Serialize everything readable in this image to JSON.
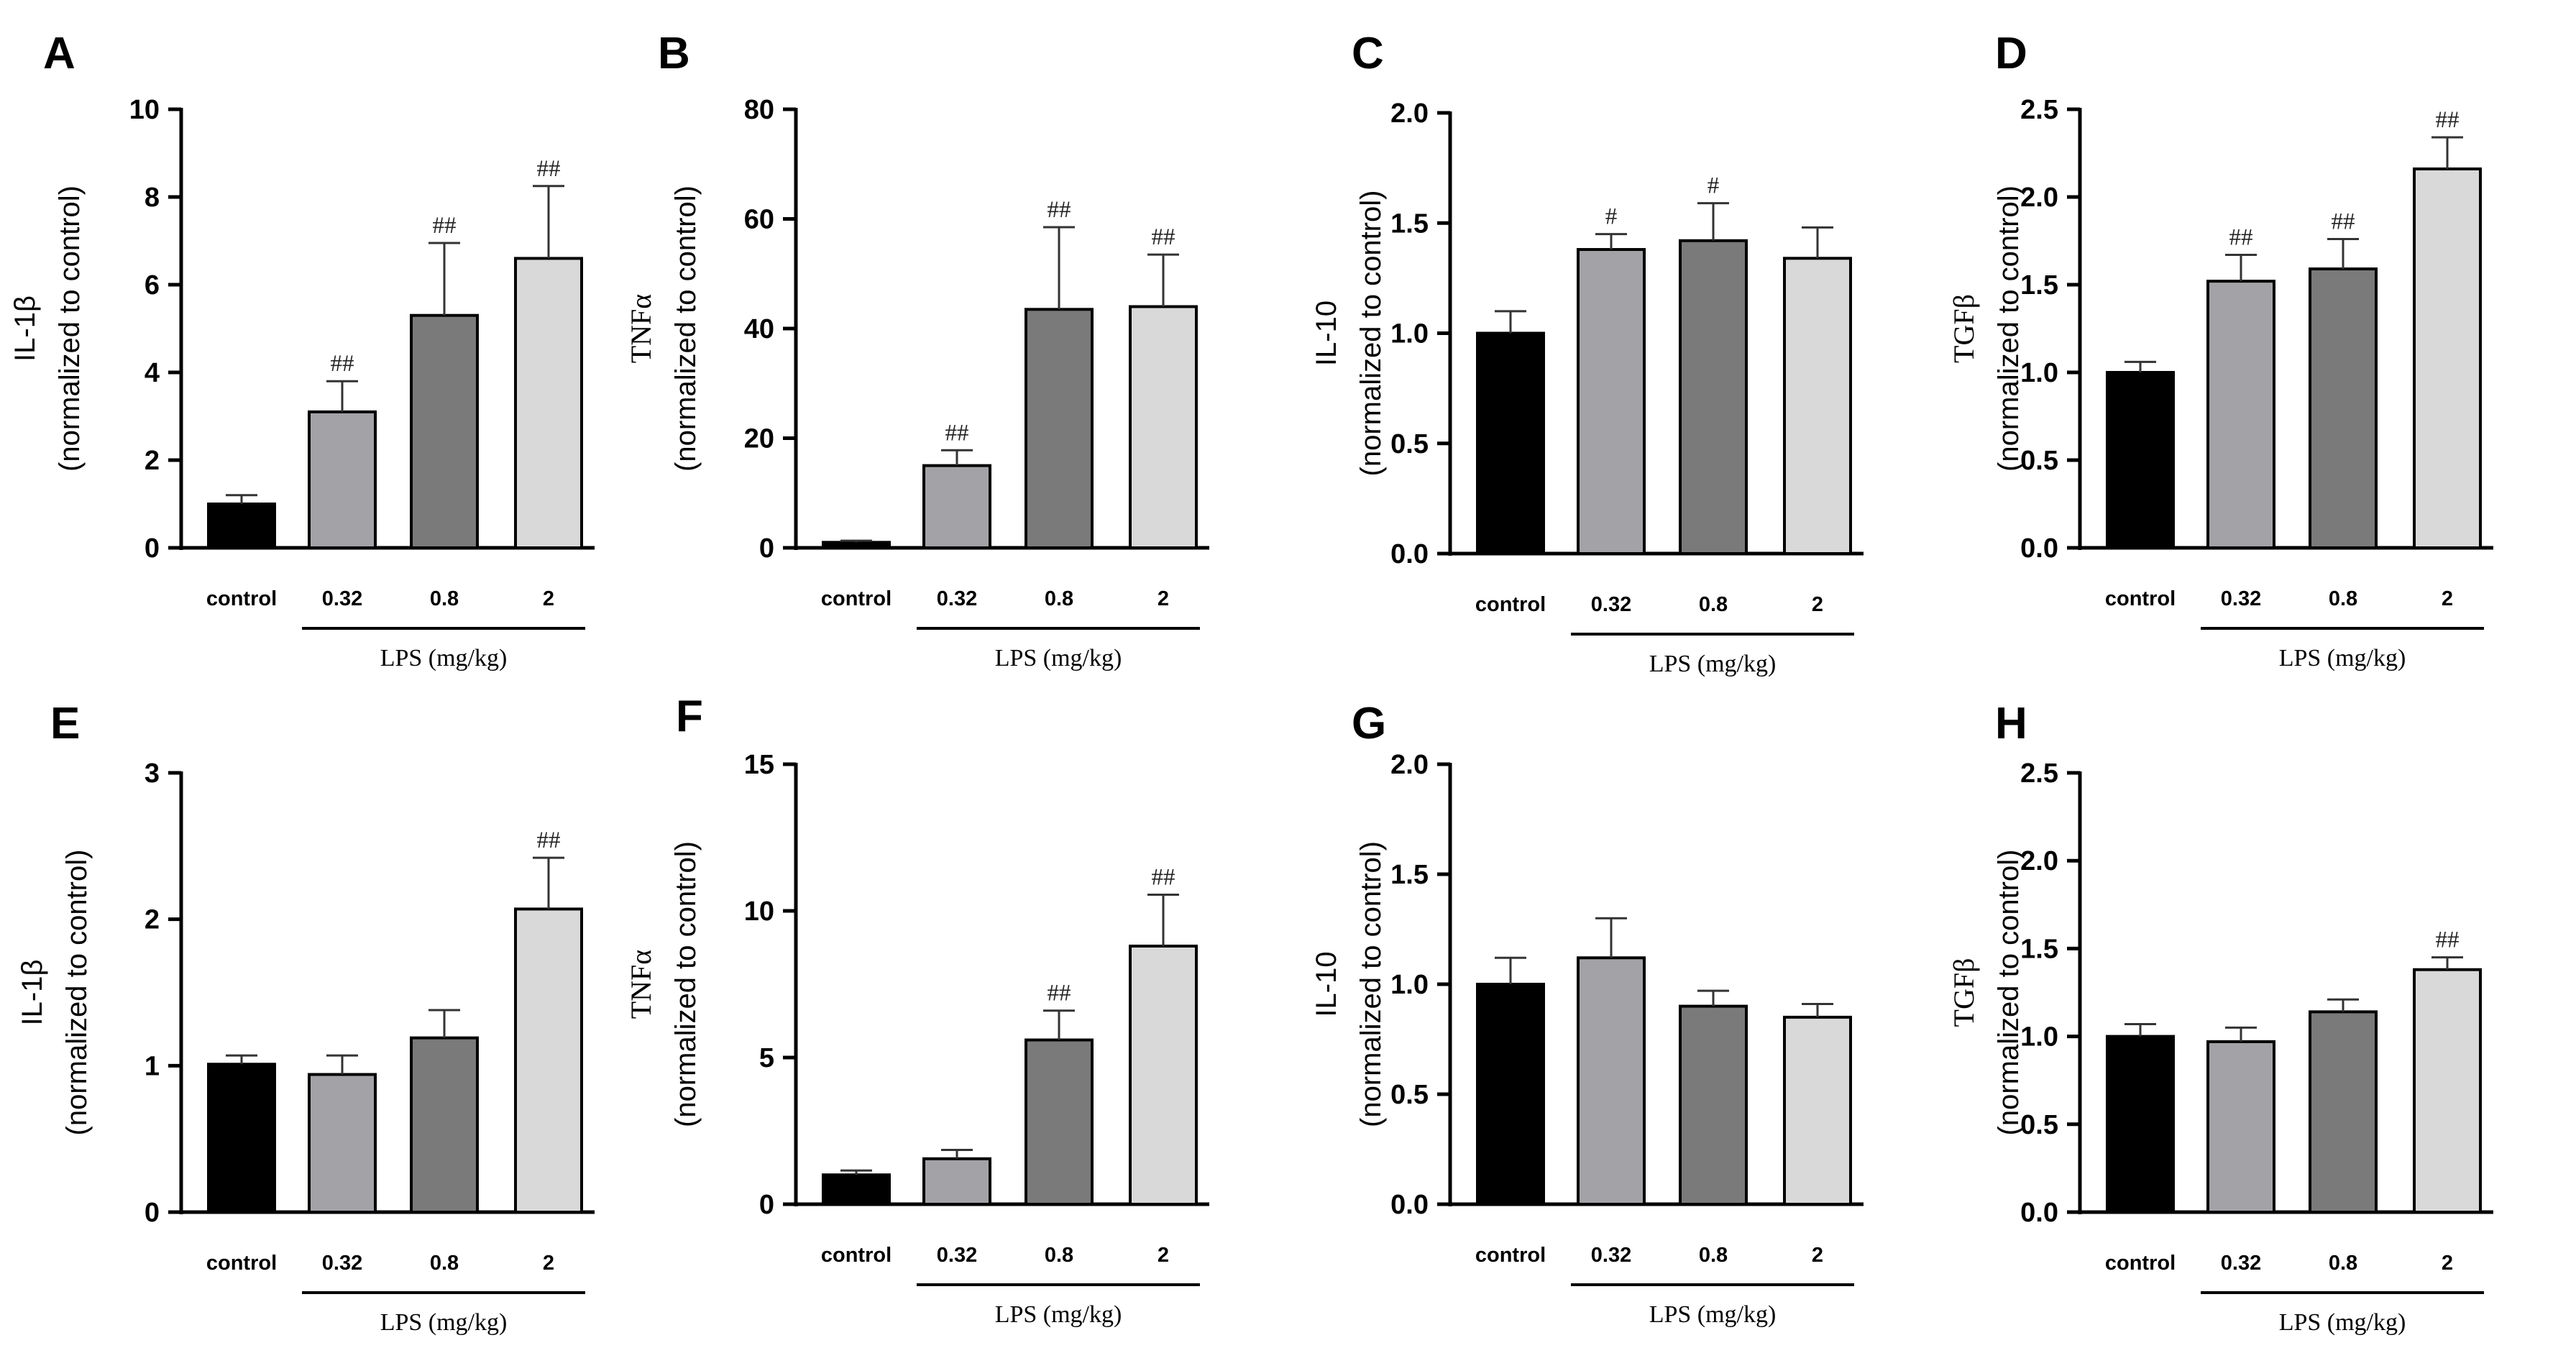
{
  "chart_data": [
    {
      "panel": "A",
      "type": "bar",
      "ylabel": "IL-1β",
      "ylabel_sub": "(normalized to control)",
      "ylim": [
        0,
        10
      ],
      "yticks": [
        0,
        2,
        4,
        6,
        8,
        10
      ],
      "ytick_labels": [
        "0",
        "2",
        "4",
        "6",
        "8",
        "10"
      ],
      "categories": [
        "control",
        "0.32",
        "0.8",
        "2"
      ],
      "group_label": "LPS (mg/kg)",
      "values": [
        1.0,
        3.1,
        5.3,
        6.6
      ],
      "errors": [
        0.2,
        0.7,
        1.65,
        1.65
      ],
      "significance": [
        "",
        "##",
        "##",
        "##"
      ]
    },
    {
      "panel": "B",
      "type": "bar",
      "ylabel": "TNFα",
      "ylabel_sub": "(normalized to control)",
      "ylim": [
        0,
        80
      ],
      "yticks": [
        0,
        20,
        40,
        60,
        80
      ],
      "ytick_labels": [
        "0",
        "20",
        "40",
        "60",
        "80"
      ],
      "categories": [
        "control",
        "0.32",
        "0.8",
        "2"
      ],
      "group_label": "LPS (mg/kg)",
      "values": [
        1.0,
        15.0,
        43.5,
        44.0
      ],
      "errors": [
        0.3,
        2.8,
        15.0,
        9.5
      ],
      "significance": [
        "",
        "##",
        "##",
        "##"
      ]
    },
    {
      "panel": "C",
      "type": "bar",
      "ylabel": "IL-10",
      "ylabel_sub": "(normalized to control)",
      "ylim": [
        0,
        2.0
      ],
      "yticks": [
        0,
        0.5,
        1.0,
        1.5,
        2.0
      ],
      "ytick_labels": [
        "0.0",
        "0.5",
        "1.0",
        "1.5",
        "2.0"
      ],
      "categories": [
        "control",
        "0.32",
        "0.8",
        "2"
      ],
      "group_label": "LPS (mg/kg)",
      "values": [
        1.0,
        1.38,
        1.42,
        1.34
      ],
      "errors": [
        0.1,
        0.07,
        0.17,
        0.14
      ],
      "significance": [
        "",
        "#",
        "#",
        ""
      ]
    },
    {
      "panel": "D",
      "type": "bar",
      "ylabel": "TGFβ",
      "ylabel_sub": "(normalized to control)",
      "ylim": [
        0,
        2.5
      ],
      "yticks": [
        0,
        0.5,
        1.0,
        1.5,
        2.0,
        2.5
      ],
      "ytick_labels": [
        "0.0",
        "0.5",
        "1.0",
        "1.5",
        "2.0",
        "2.5"
      ],
      "categories": [
        "control",
        "0.32",
        "0.8",
        "2"
      ],
      "group_label": "LPS (mg/kg)",
      "values": [
        1.0,
        1.52,
        1.59,
        2.16
      ],
      "errors": [
        0.06,
        0.15,
        0.17,
        0.18
      ],
      "significance": [
        "",
        "##",
        "##",
        "##"
      ]
    },
    {
      "panel": "E",
      "type": "bar",
      "ylabel": "IL-1β",
      "ylabel_sub": "(normalized to control)",
      "ylim": [
        0,
        3
      ],
      "yticks": [
        0,
        1,
        2,
        3
      ],
      "ytick_labels": [
        "0",
        "1",
        "2",
        "3"
      ],
      "categories": [
        "control",
        "0.32",
        "0.8",
        "2"
      ],
      "group_label": "LPS (mg/kg)",
      "values": [
        1.01,
        0.94,
        1.19,
        2.07
      ],
      "errors": [
        0.06,
        0.13,
        0.19,
        0.35
      ],
      "significance": [
        "",
        "",
        "",
        "##"
      ]
    },
    {
      "panel": "F",
      "type": "bar",
      "ylabel": "TNFα",
      "ylabel_sub": "(normalized to control)",
      "ylim": [
        0,
        15
      ],
      "yticks": [
        0,
        5,
        10,
        15
      ],
      "ytick_labels": [
        "0",
        "5",
        "10",
        "15"
      ],
      "categories": [
        "control",
        "0.32",
        "0.8",
        "2"
      ],
      "group_label": "LPS (mg/kg)",
      "values": [
        1.0,
        1.55,
        5.6,
        8.8
      ],
      "errors": [
        0.15,
        0.3,
        1.0,
        1.75
      ],
      "significance": [
        "",
        "",
        "##",
        "##"
      ]
    },
    {
      "panel": "G",
      "type": "bar",
      "ylabel": "IL-10",
      "ylabel_sub": "(normalized to control)",
      "ylim": [
        0,
        2.0
      ],
      "yticks": [
        0,
        0.5,
        1.0,
        1.5,
        2.0
      ],
      "ytick_labels": [
        "0.0",
        "0.5",
        "1.0",
        "1.5",
        "2.0"
      ],
      "categories": [
        "control",
        "0.32",
        "0.8",
        "2"
      ],
      "group_label": "LPS (mg/kg)",
      "values": [
        1.0,
        1.12,
        0.9,
        0.85
      ],
      "errors": [
        0.12,
        0.18,
        0.07,
        0.06
      ],
      "significance": [
        "",
        "",
        "",
        ""
      ]
    },
    {
      "panel": "H",
      "type": "bar",
      "ylabel": "TGFβ",
      "ylabel_sub": "(normalized to control)",
      "ylim": [
        0,
        2.5
      ],
      "yticks": [
        0,
        0.5,
        1.0,
        1.5,
        2.0,
        2.5
      ],
      "ytick_labels": [
        "0.0",
        "0.5",
        "1.0",
        "1.5",
        "2.0",
        "2.5"
      ],
      "categories": [
        "control",
        "0.32",
        "0.8",
        "2"
      ],
      "group_label": "LPS (mg/kg)",
      "values": [
        1.0,
        0.97,
        1.14,
        1.38
      ],
      "errors": [
        0.07,
        0.08,
        0.07,
        0.07
      ],
      "significance": [
        "",
        "",
        "",
        "##"
      ]
    }
  ],
  "colors": {
    "bars": [
      "#000000",
      "#a3a3a7",
      "#7a7a7a",
      "#d9d9d9"
    ],
    "axis": "#000000",
    "error_bar": "#333333"
  }
}
